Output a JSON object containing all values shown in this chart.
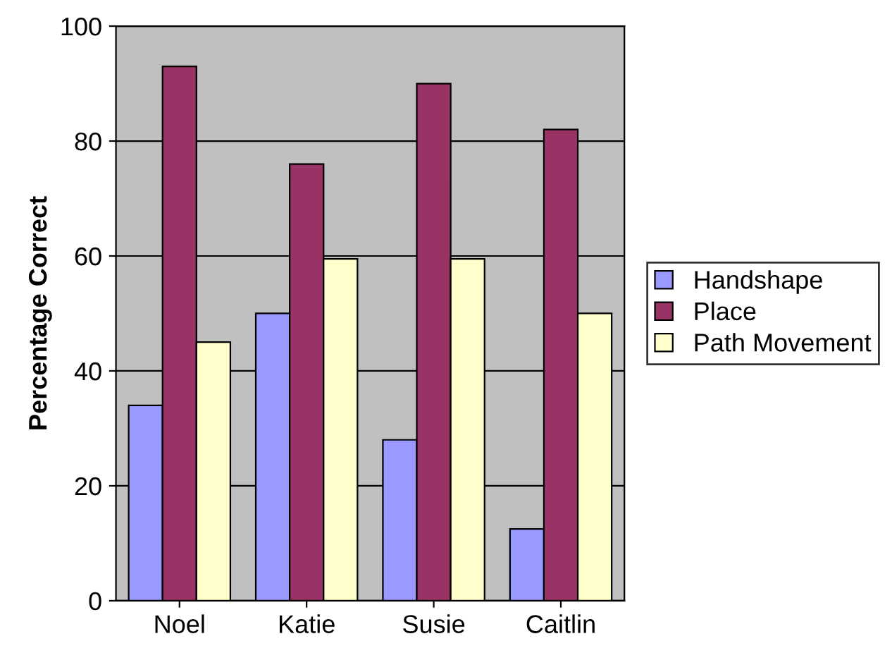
{
  "chart_data": {
    "type": "bar",
    "ylabel": "Percentage Correct",
    "categories": [
      "Noel",
      "Katie",
      "Susie",
      "Caitlin"
    ],
    "series": [
      {
        "name": "Handshape",
        "color": "#9999ff",
        "values": [
          34,
          50,
          28,
          12.5
        ]
      },
      {
        "name": "Place",
        "color": "#993366",
        "values": [
          93,
          76,
          90,
          82
        ]
      },
      {
        "name": "Path Movement",
        "color": "#ffffcc",
        "values": [
          45,
          59.5,
          59.5,
          50
        ]
      }
    ],
    "ylim": [
      0,
      100
    ],
    "yticks": [
      0,
      20,
      40,
      60,
      80,
      100
    ],
    "grid": "y",
    "legend": "right"
  }
}
